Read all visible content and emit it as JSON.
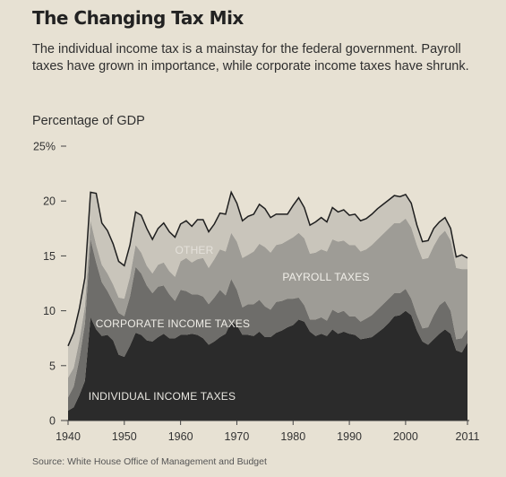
{
  "title": "The Changing Tax Mix",
  "subtitle": "The individual income tax is a mainstay for the federal government. Payroll taxes have grown in importance, while corporate income taxes have shrunk.",
  "source": "Source: White House Office of Management and Budget",
  "chart_data": {
    "type": "area",
    "stacked": true,
    "ylabel": "Percentage of GDP",
    "xlabel": "",
    "ylim": [
      0,
      25
    ],
    "xlim": [
      1940,
      2011
    ],
    "y_ticks": [
      "0",
      "5",
      "10",
      "15",
      "20",
      "25%"
    ],
    "x_ticks": [
      "1940",
      "1950",
      "1960",
      "1970",
      "1980",
      "1990",
      "2000",
      "2011"
    ],
    "grid": false,
    "x": [
      1940,
      1941,
      1942,
      1943,
      1944,
      1945,
      1946,
      1947,
      1948,
      1949,
      1950,
      1951,
      1952,
      1953,
      1954,
      1955,
      1956,
      1957,
      1958,
      1959,
      1960,
      1961,
      1962,
      1963,
      1964,
      1965,
      1966,
      1967,
      1968,
      1969,
      1970,
      1971,
      1972,
      1973,
      1974,
      1975,
      1976,
      1977,
      1978,
      1979,
      1980,
      1981,
      1982,
      1983,
      1984,
      1985,
      1986,
      1987,
      1988,
      1989,
      1990,
      1991,
      1992,
      1993,
      1994,
      1995,
      1996,
      1997,
      1998,
      1999,
      2000,
      2001,
      2002,
      2003,
      2004,
      2005,
      2006,
      2007,
      2008,
      2009,
      2010,
      2011
    ],
    "series": [
      {
        "name": "INDIVIDUAL INCOME TAXES",
        "color": "#2b2b2b",
        "values": [
          0.9,
          1.2,
          2.3,
          3.6,
          9.4,
          8.3,
          7.7,
          7.8,
          7.3,
          6.0,
          5.8,
          6.8,
          8.0,
          7.8,
          7.3,
          7.2,
          7.6,
          7.9,
          7.5,
          7.5,
          7.8,
          7.8,
          7.9,
          7.8,
          7.5,
          6.9,
          7.2,
          7.6,
          7.9,
          9.0,
          8.7,
          7.8,
          7.8,
          7.7,
          8.1,
          7.6,
          7.6,
          8.0,
          8.2,
          8.5,
          8.7,
          9.2,
          9.0,
          8.1,
          7.7,
          7.9,
          7.7,
          8.3,
          7.9,
          8.1,
          7.9,
          7.8,
          7.4,
          7.5,
          7.6,
          8.0,
          8.4,
          8.9,
          9.5,
          9.6,
          10.0,
          9.6,
          8.2,
          7.2,
          6.9,
          7.4,
          7.9,
          8.3,
          7.9,
          6.4,
          6.2,
          7.1
        ]
      },
      {
        "name": "CORPORATE INCOME TAXES",
        "color": "#6e6d6a",
        "values": [
          1.2,
          1.9,
          3.3,
          5.2,
          7.1,
          6.1,
          4.9,
          4.0,
          3.5,
          3.8,
          3.7,
          4.5,
          6.0,
          5.6,
          5.0,
          4.4,
          4.6,
          4.4,
          4.0,
          3.4,
          4.1,
          4.0,
          3.6,
          3.7,
          3.8,
          3.7,
          4.0,
          4.3,
          3.5,
          3.9,
          3.2,
          2.5,
          2.8,
          2.9,
          2.9,
          2.8,
          2.5,
          2.8,
          2.7,
          2.6,
          2.4,
          2.0,
          1.5,
          1.1,
          1.5,
          1.5,
          1.4,
          1.8,
          1.9,
          1.9,
          1.6,
          1.7,
          1.6,
          1.8,
          2.0,
          2.1,
          2.2,
          2.2,
          2.1,
          2.0,
          2.0,
          1.5,
          1.4,
          1.2,
          1.6,
          2.2,
          2.6,
          2.6,
          2.1,
          1.0,
          1.3,
          1.2
        ]
      },
      {
        "name": "PAYROLL TAXES",
        "color": "#9e9c96",
        "values": [
          1.8,
          1.7,
          1.7,
          1.6,
          1.7,
          1.6,
          1.6,
          1.6,
          1.6,
          1.4,
          1.6,
          1.8,
          2.0,
          1.9,
          1.8,
          1.8,
          2.0,
          2.1,
          2.1,
          2.2,
          2.6,
          3.0,
          2.9,
          3.2,
          3.5,
          3.3,
          3.5,
          3.7,
          4.0,
          4.2,
          4.4,
          4.5,
          4.5,
          4.8,
          5.1,
          5.4,
          5.2,
          5.2,
          5.2,
          5.3,
          5.6,
          5.9,
          6.1,
          6.0,
          6.1,
          6.2,
          6.3,
          6.4,
          6.5,
          6.4,
          6.5,
          6.5,
          6.4,
          6.3,
          6.4,
          6.4,
          6.4,
          6.4,
          6.4,
          6.4,
          6.4,
          6.5,
          6.4,
          6.3,
          6.3,
          6.3,
          6.3,
          6.4,
          6.4,
          6.5,
          6.3,
          5.5
        ]
      },
      {
        "name": "OTHER",
        "color": "#c9c5bb",
        "values": [
          2.9,
          3.2,
          2.9,
          2.6,
          2.6,
          4.7,
          3.8,
          3.9,
          3.7,
          3.3,
          3.0,
          2.9,
          3.0,
          3.4,
          3.4,
          3.1,
          3.3,
          3.6,
          3.6,
          3.6,
          3.4,
          3.4,
          3.3,
          3.6,
          3.5,
          3.3,
          3.2,
          3.3,
          3.4,
          3.7,
          3.5,
          3.4,
          3.5,
          3.4,
          3.6,
          3.5,
          3.2,
          2.8,
          2.7,
          2.4,
          2.9,
          3.2,
          2.8,
          2.6,
          2.8,
          2.9,
          2.7,
          2.9,
          2.7,
          2.8,
          2.7,
          2.8,
          2.8,
          2.8,
          2.8,
          2.8,
          2.7,
          2.6,
          2.5,
          2.4,
          2.2,
          2.2,
          1.8,
          1.6,
          1.6,
          1.6,
          1.3,
          1.2,
          1.1,
          1.0,
          1.3,
          1.0
        ]
      }
    ],
    "labels": [
      "OTHER",
      "PAYROLL TAXES",
      "CORPORATE INCOME TAXES",
      "INDIVIDUAL INCOME TAXES"
    ]
  }
}
